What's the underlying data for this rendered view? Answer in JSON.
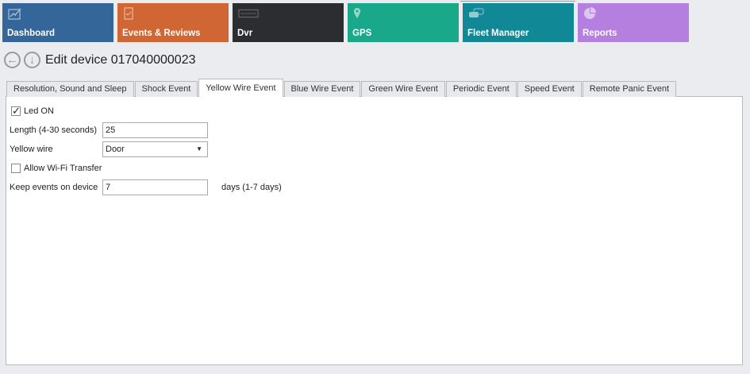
{
  "nav": [
    {
      "label": "Dashboard",
      "icon": "chart-icon",
      "color": "#346699"
    },
    {
      "label": "Events & Reviews",
      "icon": "clipboard-check-icon",
      "color": "#cf6633"
    },
    {
      "label": "Dvr",
      "icon": "dvr-icon",
      "color": "#2b2d31"
    },
    {
      "label": "GPS",
      "icon": "map-pin-icon",
      "color": "#1aa88a"
    },
    {
      "label": "Fleet Manager",
      "icon": "cars-icon",
      "color": "#118896"
    },
    {
      "label": "Reports",
      "icon": "pie-chart-icon",
      "color": "#b57fe0"
    }
  ],
  "header": {
    "title": "Edit device 017040000023"
  },
  "tabs": [
    "Resolution, Sound and Sleep",
    "Shock Event",
    "Yellow Wire Event",
    "Blue Wire Event",
    "Green Wire Event",
    "Periodic Event",
    "Speed Event",
    "Remote Panic Event"
  ],
  "selected_tab": "Yellow Wire Event",
  "form": {
    "led_on": {
      "label": "Led ON",
      "checked": true
    },
    "length": {
      "label": "Length (4-30 seconds)",
      "value": "25"
    },
    "yellow_wire": {
      "label": "Yellow wire",
      "value": "Door"
    },
    "wifi": {
      "label": "Allow Wi-Fi Transfer",
      "checked": false
    },
    "keep": {
      "label": "Keep events on device",
      "value": "7",
      "suffix": "days (1-7 days)"
    }
  }
}
